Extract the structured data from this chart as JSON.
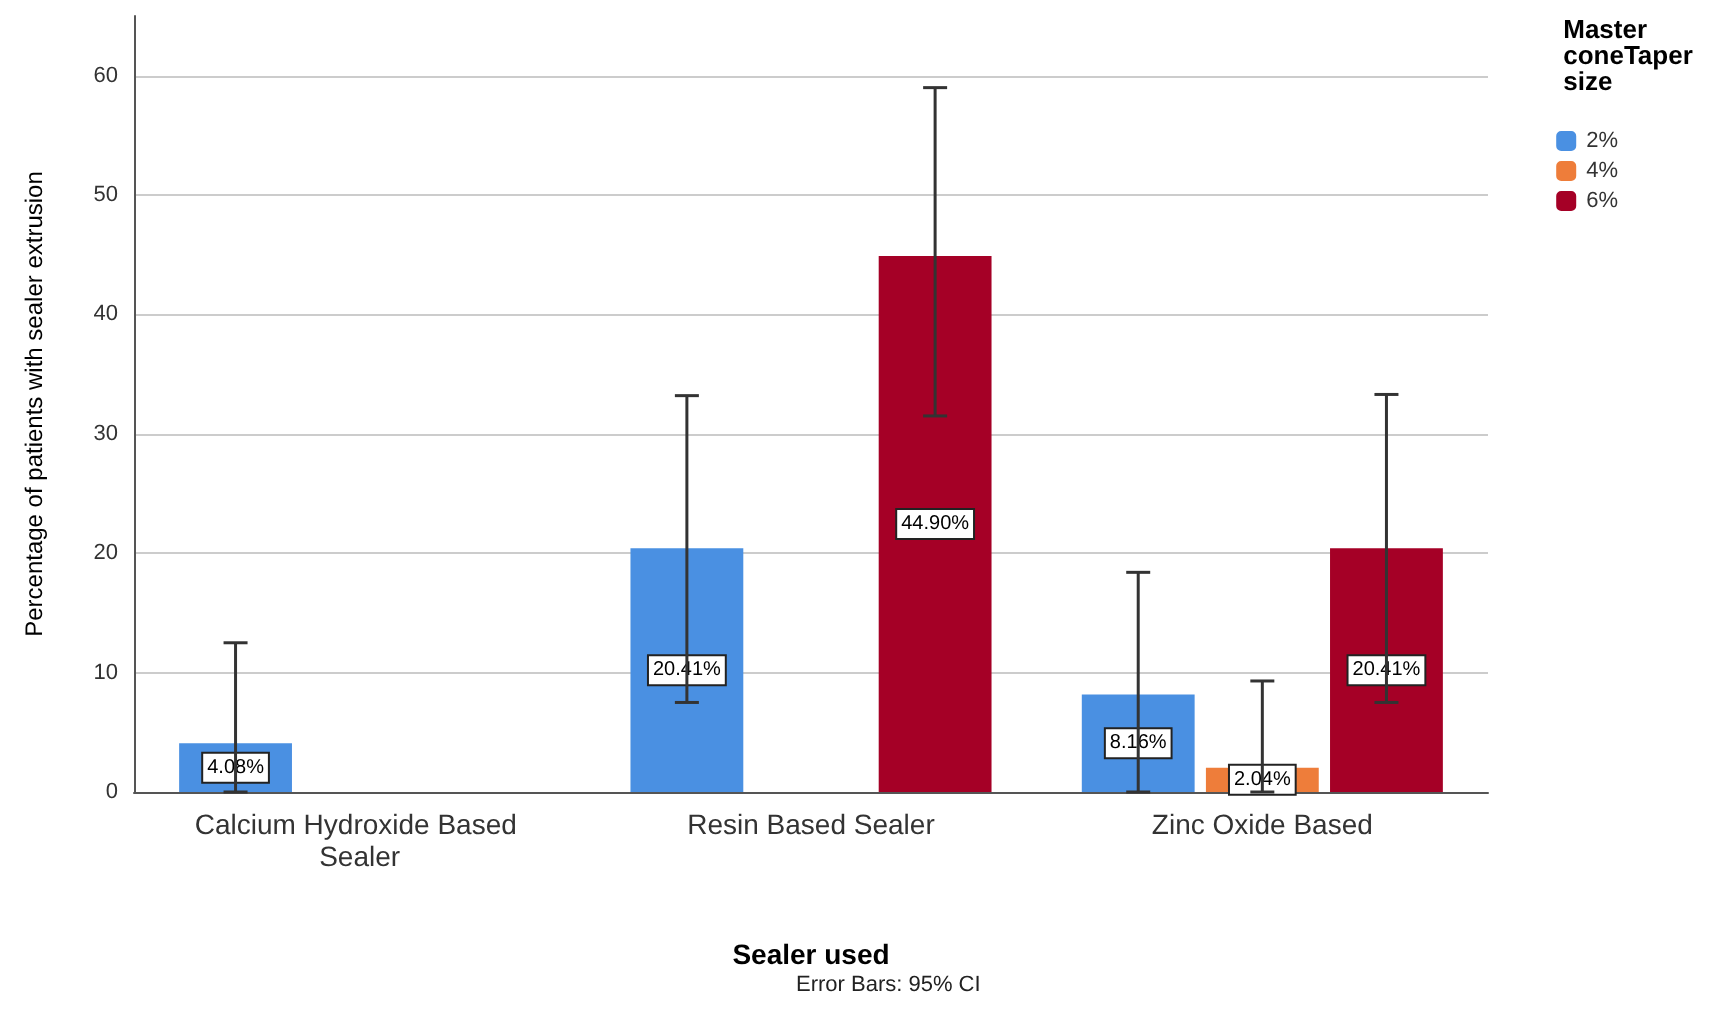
{
  "chart_data": {
    "type": "bar",
    "xlabel": "Sealer used",
    "ylabel": "Percentage of patients with sealer extrusion",
    "legend_title": "Master coneTaper size",
    "categories": [
      "Calcium Hydroxide Based Sealer",
      "Resin Based Sealer",
      "Zinc Oxide Based"
    ],
    "series": [
      {
        "name": "2%",
        "color": "#4a90e2",
        "values": [
          4.08,
          20.41,
          8.16
        ],
        "value_labels": [
          "4.08%",
          "20.41%",
          "8.16%"
        ],
        "errors": [
          [
            0,
            12.5
          ],
          [
            7.5,
            33.2
          ],
          [
            0,
            18.4
          ]
        ]
      },
      {
        "name": "4%",
        "color": "#ee7d3a",
        "values": [
          null,
          null,
          2.04
        ],
        "value_labels": [
          null,
          null,
          "2.04%"
        ],
        "errors": [
          null,
          null,
          [
            0,
            9.3
          ]
        ]
      },
      {
        "name": "6%",
        "color": "#a50026",
        "values": [
          null,
          44.9,
          20.41
        ],
        "value_labels": [
          null,
          "44.90%",
          "20.41%"
        ],
        "errors": [
          null,
          [
            31.5,
            59
          ],
          [
            7.5,
            33.3
          ]
        ]
      }
    ],
    "ylim": [
      0,
      65
    ],
    "yticks": [
      0,
      10,
      20,
      30,
      40,
      50,
      60
    ],
    "grid": "y",
    "legend": "top right",
    "annotations": [
      "Error Bars: 95% CI"
    ]
  }
}
